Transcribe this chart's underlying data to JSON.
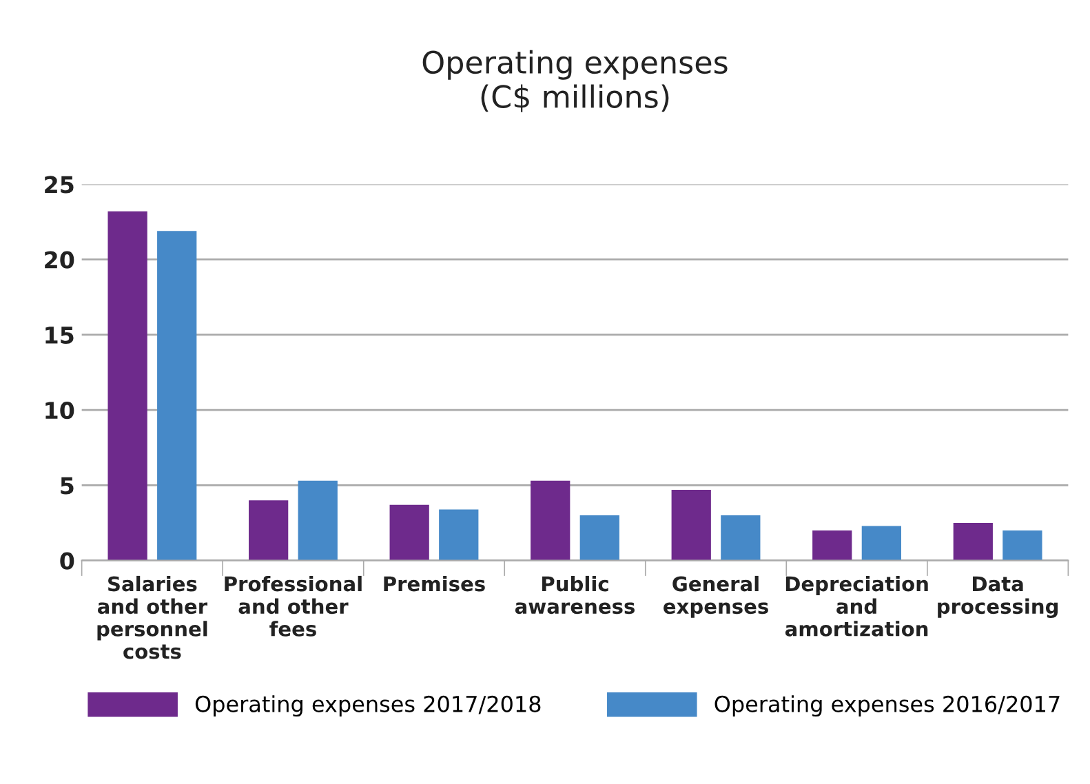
{
  "chart_data": {
    "type": "bar",
    "title": "Operating expenses\n(C$ millions)",
    "categories": [
      "Salaries\nand other\npersonnel\ncosts",
      "Professional\nand other\nfees",
      "Premises",
      "Public\nawareness",
      "General\nexpenses",
      "Depreciation\nand\namortization",
      "Data\nprocessing"
    ],
    "series": [
      {
        "name": "Operating expenses 2017/2018",
        "color": "#6e2a8c",
        "values": [
          23.2,
          4.0,
          3.7,
          5.3,
          4.7,
          2.0,
          2.5
        ]
      },
      {
        "name": "Operating expenses 2016/2017",
        "color": "#4689c8",
        "values": [
          21.9,
          5.3,
          3.4,
          3.0,
          3.0,
          2.3,
          2.0
        ]
      }
    ],
    "ylim": [
      0,
      25
    ],
    "yticks": [
      0,
      5,
      10,
      15,
      20,
      25
    ],
    "grid": "y",
    "legend": "bottom"
  }
}
